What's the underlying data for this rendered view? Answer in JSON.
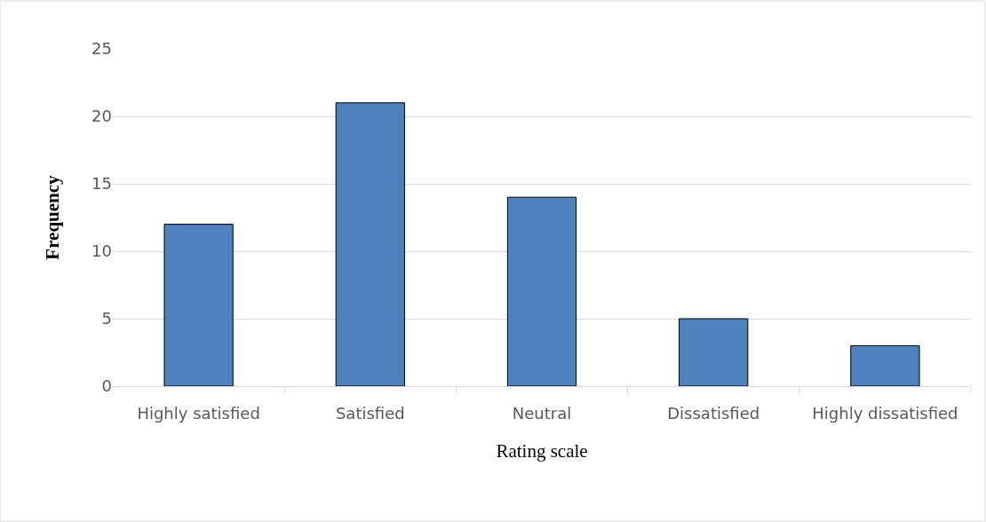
{
  "chart_data": {
    "type": "bar",
    "xlabel": "Rating scale",
    "ylabel": "Frequency",
    "categories": [
      "Highly satisfied",
      "Satisfied",
      "Neutral",
      "Dissatisfied",
      "Highly dissatisfied"
    ],
    "values": [
      12,
      21,
      14,
      5,
      3
    ],
    "color": "#4f81bd",
    "ylim": [
      0,
      25
    ],
    "yticks": [
      0,
      5,
      10,
      15,
      20,
      25
    ],
    "grid": "y"
  }
}
